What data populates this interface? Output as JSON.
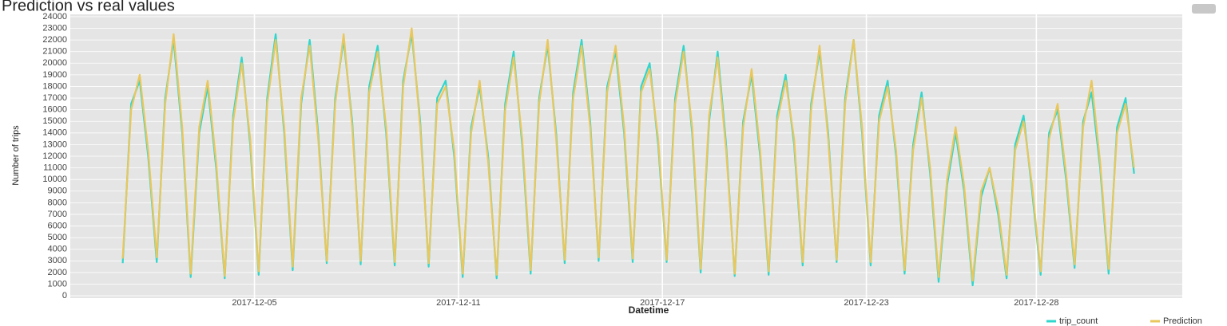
{
  "chart_data": {
    "type": "line",
    "title": "Prediction vs real values",
    "x_label": "Datetime",
    "y_label": "Number of trips",
    "x": [
      "2017-12-01 03:00",
      "2017-12-01 09:00",
      "2017-12-01 15:00",
      "2017-12-01 21:00",
      "2017-12-02 03:00",
      "2017-12-02 09:00",
      "2017-12-02 15:00",
      "2017-12-02 21:00",
      "2017-12-03 03:00",
      "2017-12-03 09:00",
      "2017-12-03 15:00",
      "2017-12-03 21:00",
      "2017-12-04 03:00",
      "2017-12-04 09:00",
      "2017-12-04 15:00",
      "2017-12-04 21:00",
      "2017-12-05 03:00",
      "2017-12-05 09:00",
      "2017-12-05 15:00",
      "2017-12-05 21:00",
      "2017-12-06 03:00",
      "2017-12-06 09:00",
      "2017-12-06 15:00",
      "2017-12-06 21:00",
      "2017-12-07 03:00",
      "2017-12-07 09:00",
      "2017-12-07 15:00",
      "2017-12-07 21:00",
      "2017-12-08 03:00",
      "2017-12-08 09:00",
      "2017-12-08 15:00",
      "2017-12-08 21:00",
      "2017-12-09 03:00",
      "2017-12-09 09:00",
      "2017-12-09 15:00",
      "2017-12-09 21:00",
      "2017-12-10 03:00",
      "2017-12-10 09:00",
      "2017-12-10 15:00",
      "2017-12-10 21:00",
      "2017-12-11 03:00",
      "2017-12-11 09:00",
      "2017-12-11 15:00",
      "2017-12-11 21:00",
      "2017-12-12 03:00",
      "2017-12-12 09:00",
      "2017-12-12 15:00",
      "2017-12-12 21:00",
      "2017-12-13 03:00",
      "2017-12-13 09:00",
      "2017-12-13 15:00",
      "2017-12-13 21:00",
      "2017-12-14 03:00",
      "2017-12-14 09:00",
      "2017-12-14 15:00",
      "2017-12-14 21:00",
      "2017-12-15 03:00",
      "2017-12-15 09:00",
      "2017-12-15 15:00",
      "2017-12-15 21:00",
      "2017-12-16 03:00",
      "2017-12-16 09:00",
      "2017-12-16 15:00",
      "2017-12-16 21:00",
      "2017-12-17 03:00",
      "2017-12-17 09:00",
      "2017-12-17 15:00",
      "2017-12-17 21:00",
      "2017-12-18 03:00",
      "2017-12-18 09:00",
      "2017-12-18 15:00",
      "2017-12-18 21:00",
      "2017-12-19 03:00",
      "2017-12-19 09:00",
      "2017-12-19 15:00",
      "2017-12-19 21:00",
      "2017-12-20 03:00",
      "2017-12-20 09:00",
      "2017-12-20 15:00",
      "2017-12-20 21:00",
      "2017-12-21 03:00",
      "2017-12-21 09:00",
      "2017-12-21 15:00",
      "2017-12-21 21:00",
      "2017-12-22 03:00",
      "2017-12-22 09:00",
      "2017-12-22 15:00",
      "2017-12-22 21:00",
      "2017-12-23 03:00",
      "2017-12-23 09:00",
      "2017-12-23 15:00",
      "2017-12-23 21:00",
      "2017-12-24 03:00",
      "2017-12-24 09:00",
      "2017-12-24 15:00",
      "2017-12-24 21:00",
      "2017-12-25 03:00",
      "2017-12-25 09:00",
      "2017-12-25 15:00",
      "2017-12-25 21:00",
      "2017-12-26 03:00",
      "2017-12-26 09:00",
      "2017-12-26 15:00",
      "2017-12-26 21:00",
      "2017-12-27 03:00",
      "2017-12-27 09:00",
      "2017-12-27 15:00",
      "2017-12-27 21:00",
      "2017-12-28 03:00",
      "2017-12-28 09:00",
      "2017-12-28 15:00",
      "2017-12-28 21:00",
      "2017-12-29 03:00",
      "2017-12-29 09:00",
      "2017-12-29 15:00",
      "2017-12-29 21:00",
      "2017-12-30 03:00",
      "2017-12-30 09:00",
      "2017-12-30 15:00",
      "2017-12-30 21:00"
    ],
    "series": [
      {
        "name": "trip_count",
        "color": "#2fd6cc",
        "values": [
          2800,
          16500,
          18500,
          12000,
          2900,
          17000,
          22000,
          14000,
          1600,
          14000,
          18000,
          11000,
          1500,
          15500,
          20500,
          13000,
          1800,
          17000,
          22500,
          14000,
          2200,
          16500,
          22000,
          14000,
          2800,
          17000,
          22000,
          15000,
          2700,
          18000,
          21500,
          14000,
          2600,
          18500,
          22500,
          15000,
          2500,
          17000,
          18500,
          12000,
          1600,
          14500,
          18000,
          12000,
          1500,
          16500,
          21000,
          13000,
          1900,
          17000,
          21500,
          14000,
          2800,
          17500,
          22000,
          15000,
          3000,
          18000,
          21000,
          14000,
          2900,
          18000,
          20000,
          13000,
          2900,
          17000,
          21500,
          14000,
          2000,
          15000,
          21000,
          13000,
          1700,
          15000,
          19000,
          12000,
          1800,
          15500,
          19000,
          13000,
          2600,
          16500,
          21000,
          14000,
          2900,
          17000,
          22000,
          14000,
          2600,
          15500,
          18500,
          12000,
          1900,
          13000,
          17500,
          10500,
          1200,
          9500,
          14000,
          9000,
          900,
          8500,
          11000,
          7000,
          1500,
          13000,
          15500,
          9000,
          1800,
          14000,
          16000,
          10000,
          2400,
          15000,
          17500,
          11000,
          1900,
          14500,
          17000,
          10500
        ]
      },
      {
        "name": "Prediction",
        "color": "#e9c75c",
        "values": [
          3200,
          16000,
          19000,
          12500,
          3300,
          16500,
          22500,
          14500,
          1900,
          14500,
          18500,
          11500,
          1700,
          15000,
          20000,
          13500,
          2100,
          16500,
          22000,
          14500,
          2500,
          17000,
          21500,
          13500,
          3000,
          16500,
          22500,
          14500,
          3000,
          17500,
          21000,
          14500,
          2900,
          18000,
          23000,
          14500,
          2800,
          16500,
          18000,
          12500,
          1900,
          14000,
          18500,
          11500,
          1800,
          16000,
          20500,
          13500,
          2200,
          16500,
          22000,
          13500,
          3100,
          17000,
          21500,
          14500,
          3300,
          17500,
          21500,
          14500,
          3200,
          17500,
          19500,
          13500,
          3100,
          16500,
          21000,
          14500,
          2300,
          15500,
          20500,
          12500,
          1900,
          14500,
          19500,
          12500,
          2100,
          15000,
          18500,
          13500,
          2900,
          16000,
          21500,
          13500,
          3100,
          16500,
          22000,
          14500,
          2900,
          15000,
          18000,
          12500,
          2200,
          12500,
          17000,
          11000,
          1600,
          10000,
          14500,
          9500,
          1300,
          9000,
          11000,
          7500,
          1800,
          12500,
          15000,
          9500,
          2100,
          13500,
          16500,
          10500,
          2700,
          14500,
          18500,
          11500,
          2300,
          14000,
          16500,
          11000
        ]
      }
    ],
    "xlim": [
      "2017-11-29 14:00",
      "2018-01-01 07:00"
    ],
    "xticks": [
      "2017-12-05",
      "2017-12-11",
      "2017-12-17",
      "2017-12-23",
      "2017-12-28"
    ],
    "ylim": [
      -200,
      24200
    ],
    "yticks": [
      0,
      1000,
      2000,
      3000,
      4000,
      5000,
      6000,
      7000,
      8000,
      9000,
      10000,
      11000,
      12000,
      13000,
      14000,
      15000,
      16000,
      17000,
      18000,
      19000,
      20000,
      21000,
      22000,
      23000,
      24000
    ],
    "grid": true,
    "legend": "bottom-right"
  }
}
